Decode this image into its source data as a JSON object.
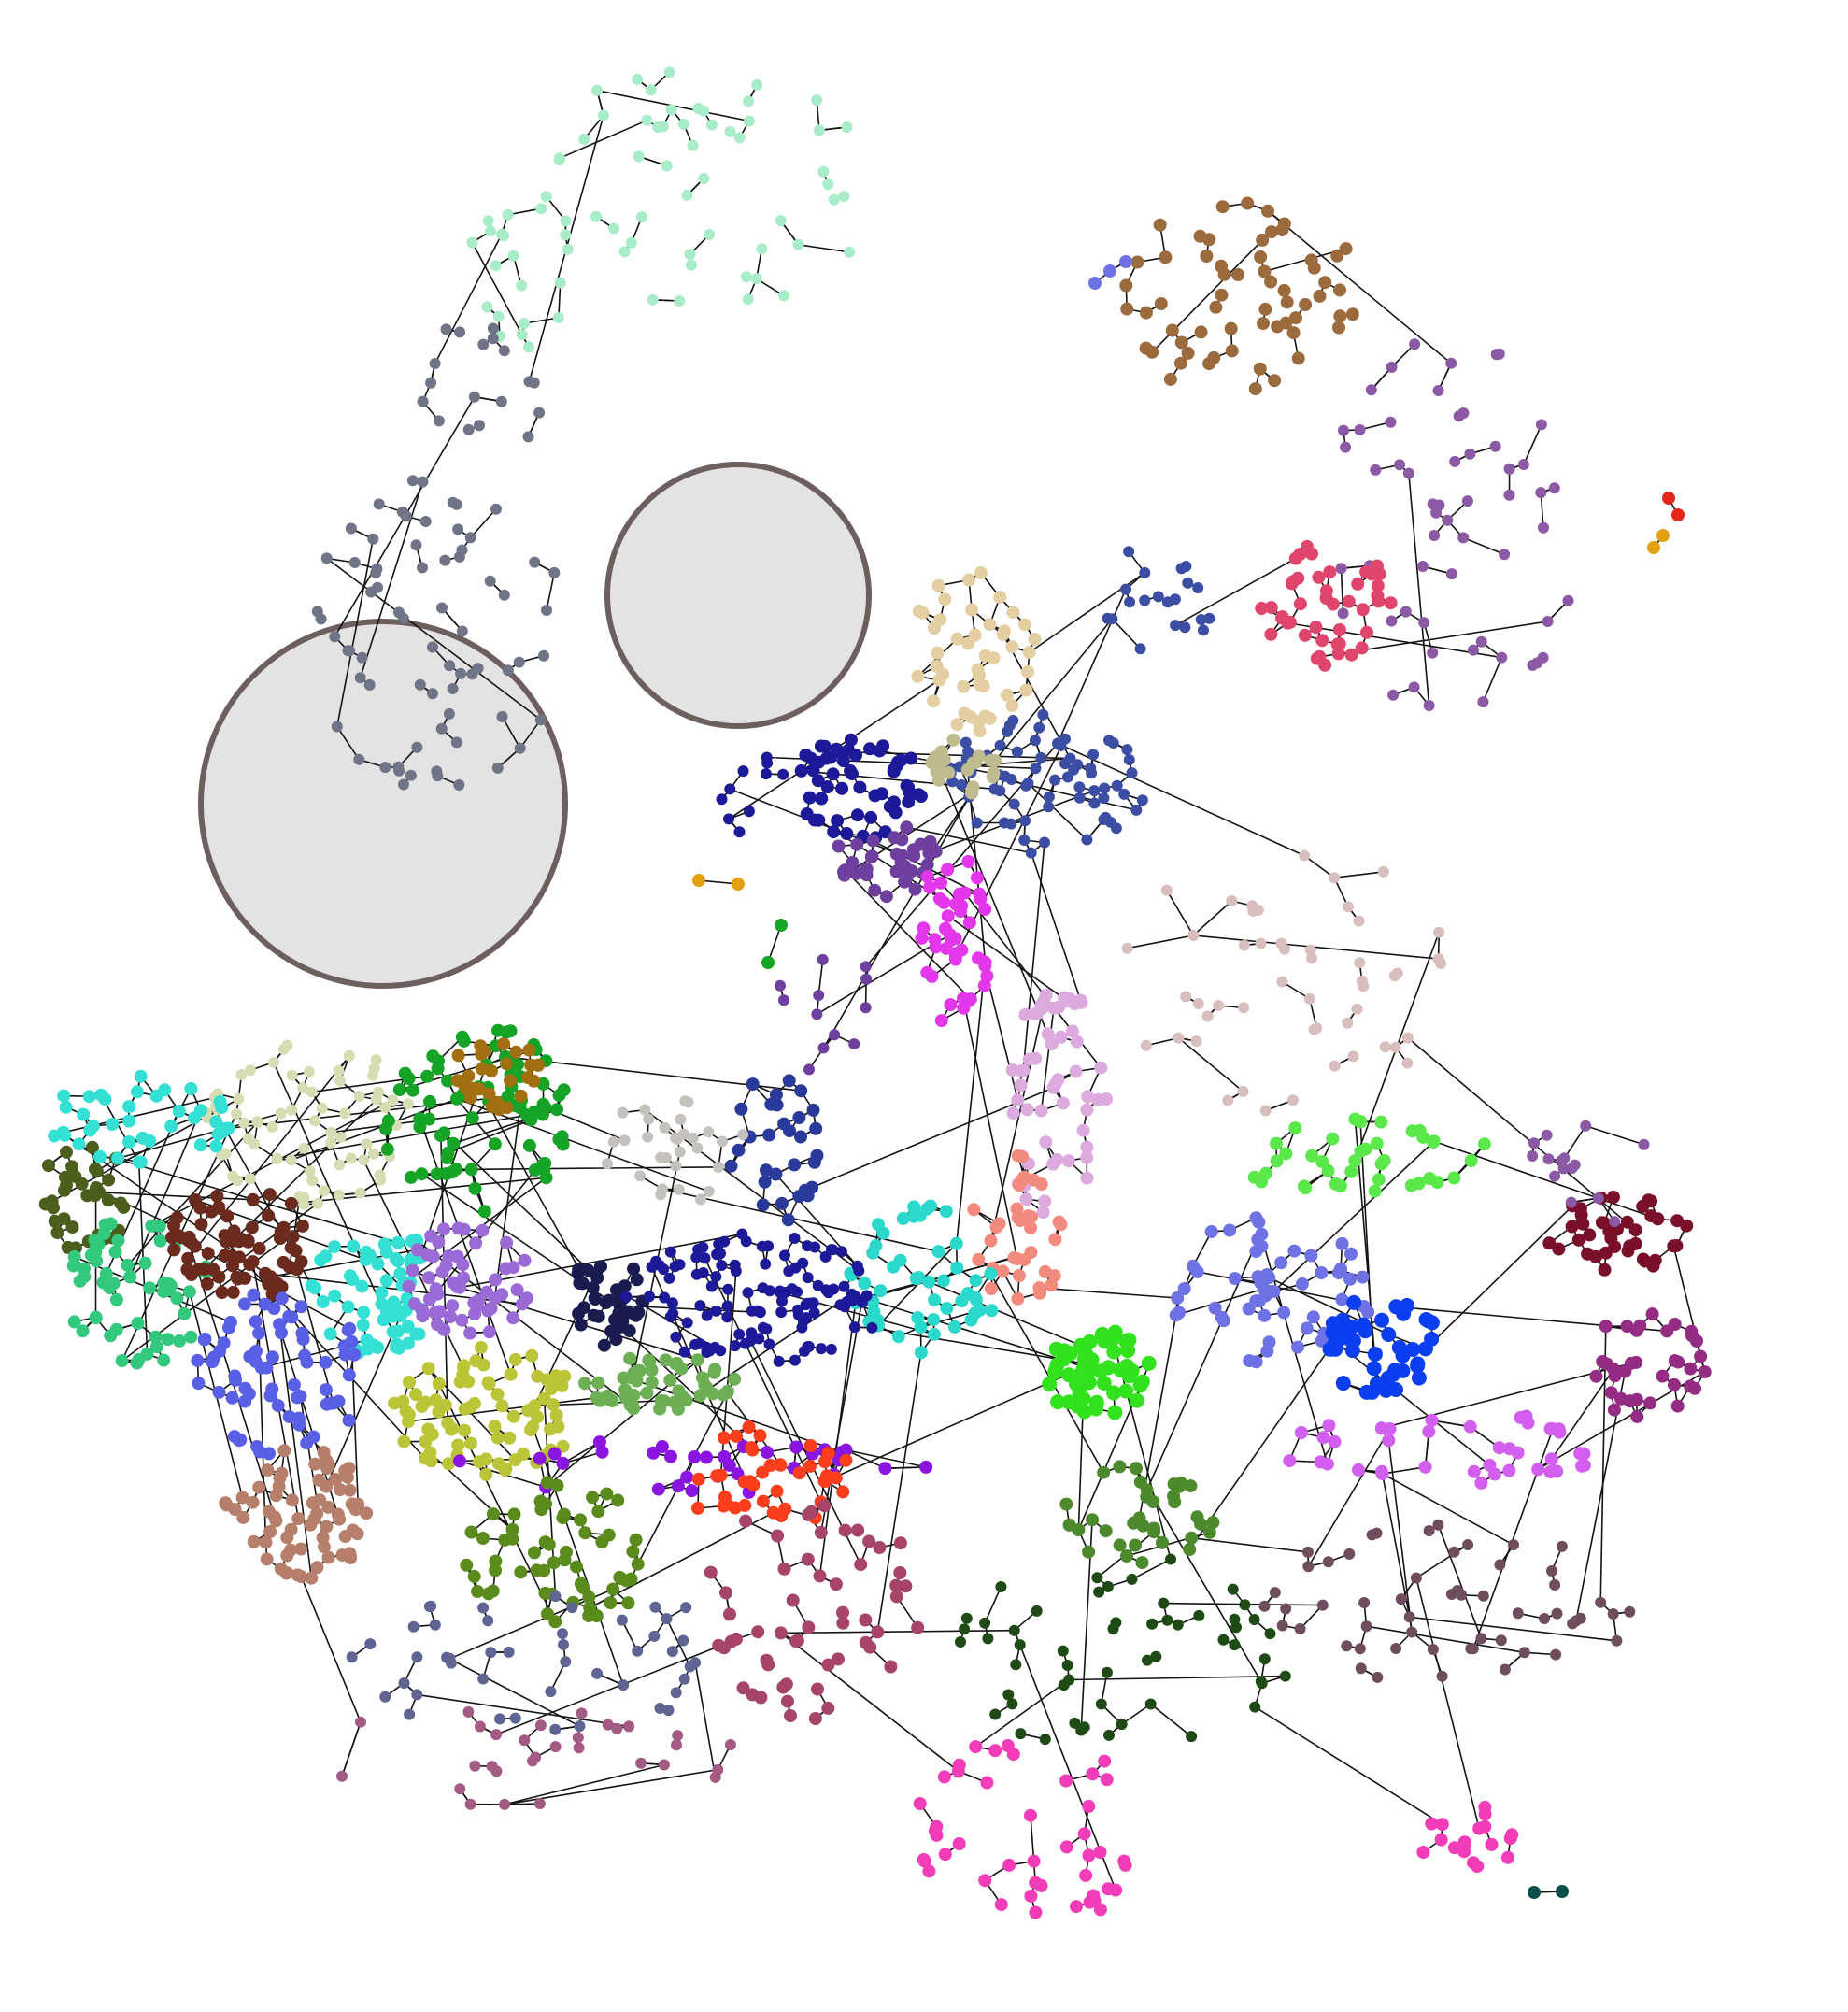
{
  "diagram": {
    "type": "network-graph",
    "background": "#ffffff",
    "edge_color": "#141414",
    "highlight": {
      "fill": "#e3e3e3",
      "stroke": "#6e5f5f",
      "count": 2
    },
    "communities": [
      {
        "name": "mint",
        "color": "#a8ecc8"
      },
      {
        "name": "slate-gray",
        "color": "#6f7486"
      },
      {
        "name": "brown",
        "color": "#9b6b3d"
      },
      {
        "name": "purple",
        "color": "#8c59a5"
      },
      {
        "name": "crimson",
        "color": "#e0456b"
      },
      {
        "name": "navy-blue",
        "color": "#3c4ea3"
      },
      {
        "name": "tan",
        "color": "#e3cfa2"
      },
      {
        "name": "khaki",
        "color": "#bfbb8f"
      },
      {
        "name": "indigo",
        "color": "#1d1a99"
      },
      {
        "name": "violet",
        "color": "#6e3f9e"
      },
      {
        "name": "magenta",
        "color": "#e436ea"
      },
      {
        "name": "pink-beige",
        "color": "#d8bfbe"
      },
      {
        "name": "lilac",
        "color": "#dcaadf"
      },
      {
        "name": "lime",
        "color": "#5ae84a"
      },
      {
        "name": "wine",
        "color": "#7a0f2a"
      },
      {
        "name": "periwinkle",
        "color": "#6e72e4"
      },
      {
        "name": "blue",
        "color": "#0a3ff0"
      },
      {
        "name": "plum",
        "color": "#952c84"
      },
      {
        "name": "light-violet",
        "color": "#d25ff0"
      },
      {
        "name": "salmon",
        "color": "#f28b7d"
      },
      {
        "name": "turquoise",
        "color": "#2ad9cc"
      },
      {
        "name": "royal-blue",
        "color": "#2a3a9a"
      },
      {
        "name": "silver",
        "color": "#c5c2bd"
      },
      {
        "name": "sage",
        "color": "#d5ddb3"
      },
      {
        "name": "green",
        "color": "#16a426"
      },
      {
        "name": "olive-drab",
        "color": "#4b5e1e"
      },
      {
        "name": "sea-green",
        "color": "#32c97e"
      },
      {
        "name": "dark-brown",
        "color": "#6a2a1e"
      },
      {
        "name": "cyan",
        "color": "#34e0d4"
      },
      {
        "name": "amethyst",
        "color": "#9a6ad7"
      },
      {
        "name": "cornflower",
        "color": "#5a60e6"
      },
      {
        "name": "rosy-brown",
        "color": "#b57f6c"
      },
      {
        "name": "chartreuse",
        "color": "#bcc537"
      },
      {
        "name": "fern",
        "color": "#6caf55"
      },
      {
        "name": "midnight",
        "color": "#1a1b4e"
      },
      {
        "name": "electric-purple",
        "color": "#8a14e0"
      },
      {
        "name": "orange-red",
        "color": "#fd3e1c"
      },
      {
        "name": "moss",
        "color": "#5b8b1c"
      },
      {
        "name": "raspberry",
        "color": "#a64469"
      },
      {
        "name": "dusk-blue",
        "color": "#5f6593"
      },
      {
        "name": "mauve",
        "color": "#a35a83"
      },
      {
        "name": "hot-pink",
        "color": "#f23cb8"
      },
      {
        "name": "dark-green",
        "color": "#1e4a15"
      },
      {
        "name": "bright-green",
        "color": "#31e21c"
      },
      {
        "name": "leaf",
        "color": "#4d8a2e"
      },
      {
        "name": "plum-gray",
        "color": "#6e4e5e"
      },
      {
        "name": "gold",
        "color": "#a27010"
      },
      {
        "name": "teal",
        "color": "#064f4d"
      },
      {
        "name": "red",
        "color": "#e7261a"
      },
      {
        "name": "amber",
        "color": "#e3a012"
      }
    ]
  }
}
